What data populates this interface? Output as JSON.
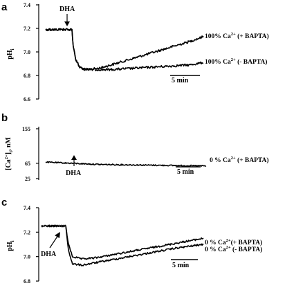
{
  "chart_data": [
    {
      "type": "line",
      "panel": "a",
      "ylabel": "pHi",
      "ylim": [
        6.6,
        7.4
      ],
      "yticks": [
        "7.4",
        "7.2",
        "7.0",
        "6.8",
        "6.6"
      ],
      "yticks_values": [
        7.4,
        7.2,
        7.0,
        6.8,
        6.6
      ],
      "annotation": "DHA",
      "scalebar": "5 min",
      "x": [
        0,
        3,
        4,
        4.2,
        4.6,
        5.2,
        6,
        8,
        10,
        13,
        16,
        19,
        22,
        24
      ],
      "series": [
        {
          "name": "100% Ca2+ (+ BAPTA)",
          "label_main": "100% Ca",
          "label_sup": "2+",
          "label_rest": " (+ BAPTA)",
          "values": [
            7.19,
            7.19,
            7.19,
            7.05,
            6.93,
            6.87,
            6.85,
            6.86,
            6.89,
            6.94,
            6.99,
            7.04,
            7.09,
            7.13
          ]
        },
        {
          "name": "100% Ca2+ (- BAPTA)",
          "label_main": "100% Ca",
          "label_sup": "2+",
          "label_rest": " (- BAPTA)",
          "values": [
            7.19,
            7.19,
            7.19,
            7.05,
            6.93,
            6.87,
            6.85,
            6.85,
            6.85,
            6.86,
            6.87,
            6.88,
            6.89,
            6.91
          ]
        }
      ]
    },
    {
      "type": "line",
      "panel": "b",
      "ylabel": "[Ca2+]i, nM",
      "ylabel_parts": [
        "[Ca",
        "2+",
        "]",
        "i",
        ", nM"
      ],
      "ylim": [
        25,
        155
      ],
      "yticks": [
        "155",
        "65",
        "25"
      ],
      "yticks_values": [
        155,
        65,
        25
      ],
      "annotation": "DHA",
      "scalebar": "5 min",
      "x": [
        0,
        4,
        8,
        12,
        16,
        20,
        24
      ],
      "series": [
        {
          "name": "0 % Ca2+ (+ BAPTA)",
          "label_main": "0 % Ca",
          "label_sup": "2+",
          "label_rest": " (+ BAPTA)",
          "values": [
            68,
            65,
            62,
            61,
            60,
            59,
            58
          ]
        }
      ]
    },
    {
      "type": "line",
      "panel": "c",
      "ylabel": "pHi",
      "ylim": [
        6.8,
        7.4
      ],
      "yticks": [
        "7.4",
        "7.2",
        "7.0",
        "6.8"
      ],
      "yticks_values": [
        7.4,
        7.2,
        7.0,
        6.8
      ],
      "annotation": "DHA",
      "scalebar": "5 min",
      "x": [
        0,
        3,
        3.6,
        4,
        4.6,
        6,
        8,
        12,
        16,
        20,
        24
      ],
      "series": [
        {
          "name": "0 % Ca2+(+ BAPTA)",
          "label_main": "0 % Ca",
          "label_sup": "2+",
          "label_rest": "(+ BAPTA)",
          "values": [
            7.25,
            7.25,
            7.25,
            7.1,
            7.0,
            6.98,
            6.99,
            7.03,
            7.07,
            7.11,
            7.15
          ]
        },
        {
          "name": "0 % Ca2+ (- BAPTA)",
          "label_main": "0 % Ca",
          "label_sup": "2+",
          "label_rest": " (- BAPTA)",
          "values": [
            7.25,
            7.25,
            7.25,
            7.05,
            6.94,
            6.93,
            6.95,
            6.99,
            7.03,
            7.07,
            7.1
          ]
        }
      ]
    }
  ]
}
